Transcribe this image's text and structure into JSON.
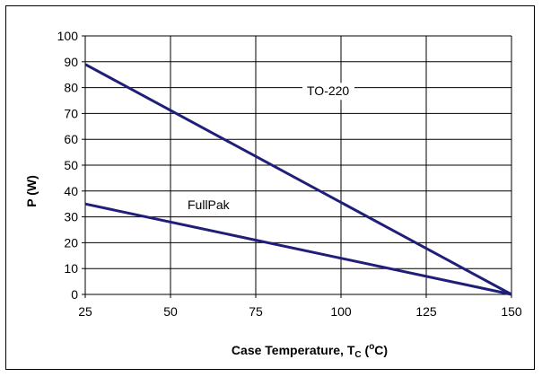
{
  "chart_data": {
    "type": "line",
    "xlabel": "Case Temperature, T",
    "xlabel_sub": "C",
    "xlabel_unit_open": " (",
    "xlabel_unit_deg": "o",
    "xlabel_unit_close": "C)",
    "ylabel": "P (W)",
    "xlim": [
      25,
      150
    ],
    "ylim": [
      0,
      100
    ],
    "xticks": [
      25,
      50,
      75,
      100,
      125,
      150
    ],
    "yticks": [
      0,
      10,
      20,
      30,
      40,
      50,
      60,
      70,
      80,
      90,
      100
    ],
    "grid": true,
    "series": [
      {
        "name": "TO-220",
        "x": [
          25,
          150
        ],
        "y": [
          89,
          0
        ],
        "color": "#1f1f7a"
      },
      {
        "name": "FullPak",
        "x": [
          25,
          150
        ],
        "y": [
          35,
          0
        ],
        "color": "#1f1f7a"
      }
    ]
  }
}
